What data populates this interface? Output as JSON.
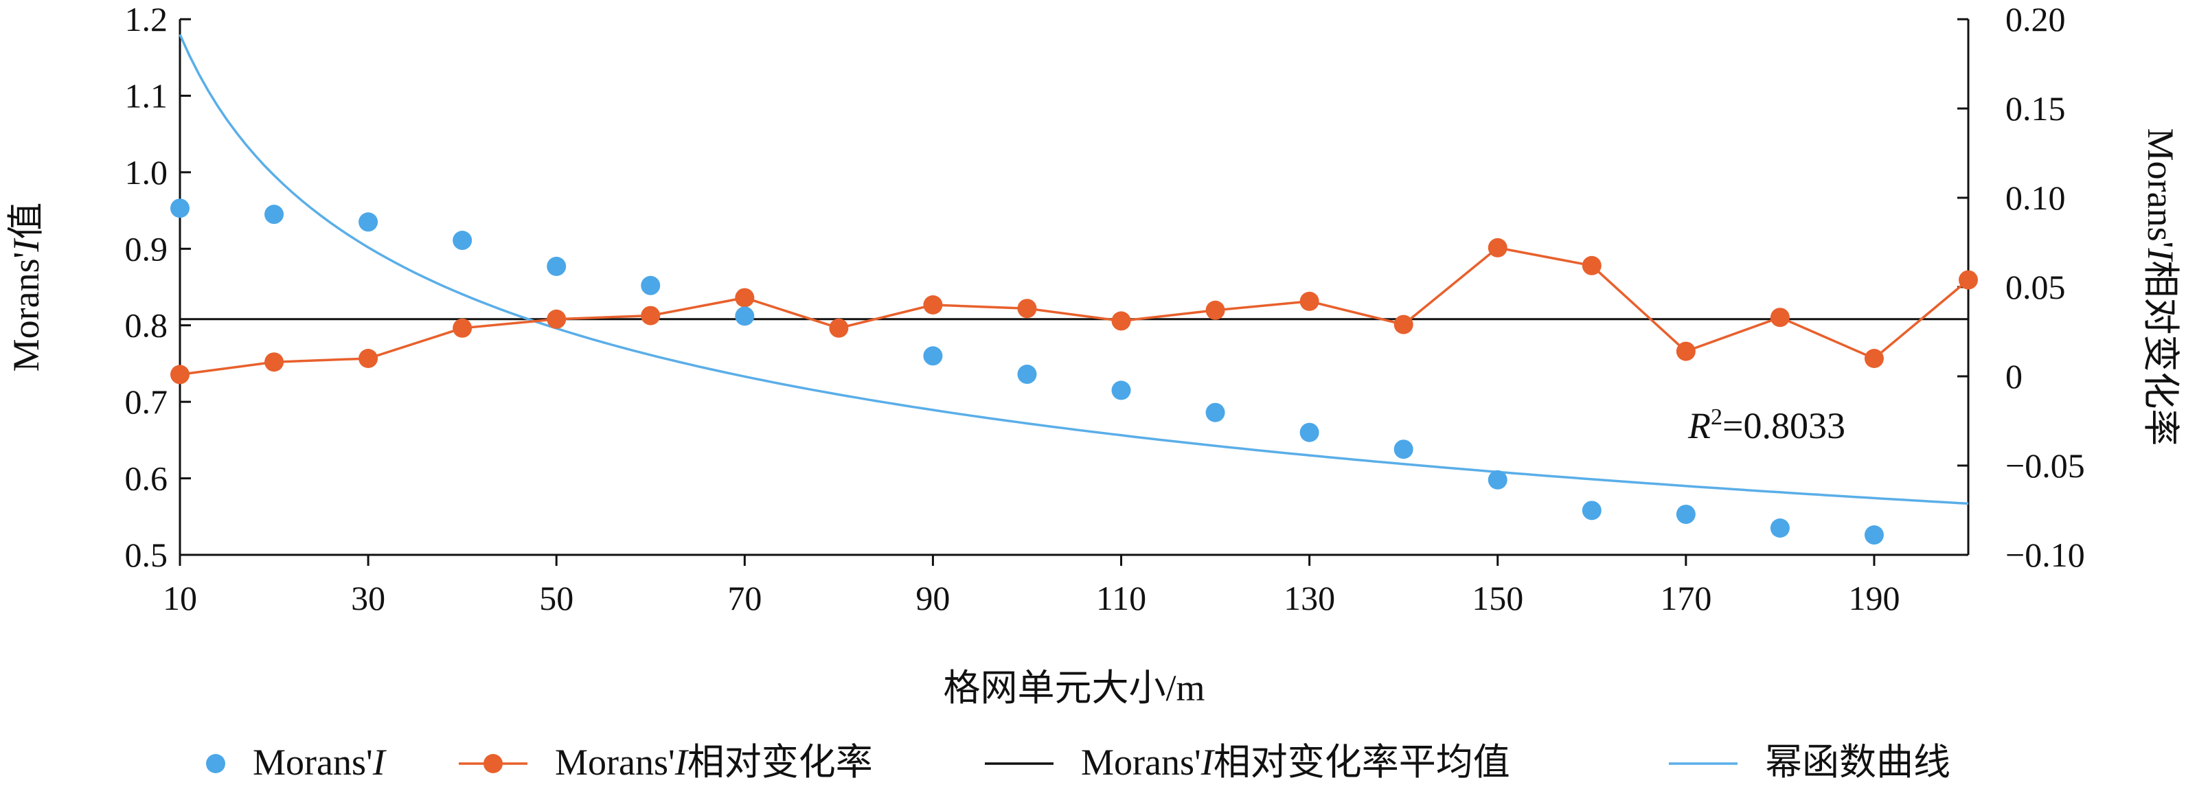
{
  "chart_data": {
    "type": "line",
    "x_axis": {
      "label": "格网单元大小/m",
      "range": [
        10,
        200
      ],
      "ticks": [
        10,
        30,
        50,
        70,
        90,
        110,
        130,
        150,
        170,
        190
      ]
    },
    "y_left": {
      "label_prefix": "Morans'",
      "label_italic": "I",
      "label_suffix": "值",
      "range": [
        0.5,
        1.2
      ],
      "ticks": [
        0.5,
        0.6,
        0.7,
        0.8,
        0.9,
        1.0,
        1.1,
        1.2
      ],
      "tick_labels": [
        "0.5",
        "0.6",
        "0.7",
        "0.8",
        "0.9",
        "1.0",
        "1.1",
        "1.2"
      ]
    },
    "y_right": {
      "label_prefix": "Morans'",
      "label_italic": "I",
      "label_suffix": "相对变化率",
      "range": [
        -0.1,
        0.2
      ],
      "ticks": [
        -0.1,
        -0.05,
        0,
        0.05,
        0.1,
        0.15,
        0.2
      ],
      "tick_labels": [
        "−0.10",
        "−0.05",
        "0",
        "0.05",
        "0.10",
        "0.15",
        "0.20"
      ]
    },
    "series": [
      {
        "name": "Morans'I",
        "kind": "scatter",
        "axis": "left",
        "color": "#4BA7E8",
        "x": [
          10,
          20,
          30,
          40,
          50,
          60,
          70,
          90,
          100,
          110,
          120,
          130,
          140,
          150,
          160,
          170,
          180,
          190
        ],
        "y": [
          0.953,
          0.945,
          0.935,
          0.911,
          0.877,
          0.852,
          0.812,
          0.76,
          0.736,
          0.715,
          0.686,
          0.66,
          0.638,
          0.598,
          0.558,
          0.553,
          0.535,
          0.526
        ]
      },
      {
        "name": "Morans'I相对变化率",
        "kind": "line-marker",
        "axis": "right",
        "color": "#E8602C",
        "x": [
          10,
          20,
          30,
          40,
          50,
          60,
          70,
          80,
          90,
          100,
          110,
          120,
          130,
          140,
          150,
          160,
          170,
          180,
          190,
          200
        ],
        "y": [
          0.001,
          0.008,
          0.01,
          0.027,
          0.032,
          0.034,
          0.044,
          0.027,
          0.04,
          0.038,
          0.031,
          0.037,
          0.042,
          0.029,
          0.072,
          0.062,
          0.014,
          0.033,
          0.01,
          0.054
        ]
      },
      {
        "name": "Morans'I相对变化率平均值",
        "kind": "hline",
        "axis": "right",
        "color": "#111111",
        "y": 0.032
      },
      {
        "name": "幂函数曲线",
        "kind": "line",
        "axis": "left",
        "color": "#5AAEE8",
        "x": [
          10,
          20,
          30,
          40,
          50,
          60,
          70,
          80,
          90,
          100,
          110,
          120,
          130,
          140,
          150,
          160,
          170,
          180,
          190,
          200
        ],
        "y": [
          1.18,
          0.993,
          0.897,
          0.834,
          0.789,
          0.755,
          0.727,
          0.704,
          0.684,
          0.667,
          0.652,
          0.639,
          0.627,
          0.616,
          0.606,
          0.597,
          0.589,
          0.581,
          0.574,
          0.567
        ]
      }
    ],
    "legend": [
      {
        "label_prefix": "Morans'",
        "label_italic": "I",
        "label_suffix": "",
        "marker": "dot",
        "color": "#4BA7E8"
      },
      {
        "label_prefix": "Morans'",
        "label_italic": "I",
        "label_suffix": "相对变化率",
        "marker": "line-dot",
        "color": "#E8602C"
      },
      {
        "label_prefix": "Morans'",
        "label_italic": "I",
        "label_suffix": "相对变化率平均值",
        "marker": "line",
        "color": "#111111"
      },
      {
        "label_prefix": "",
        "label_italic": "",
        "label_suffix": "幂函数曲线",
        "marker": "line",
        "color": "#5AAEE8"
      }
    ],
    "legend_position": "bottom",
    "annotation": {
      "italic": "R",
      "sup": "2",
      "rest": "=0.8033"
    }
  }
}
